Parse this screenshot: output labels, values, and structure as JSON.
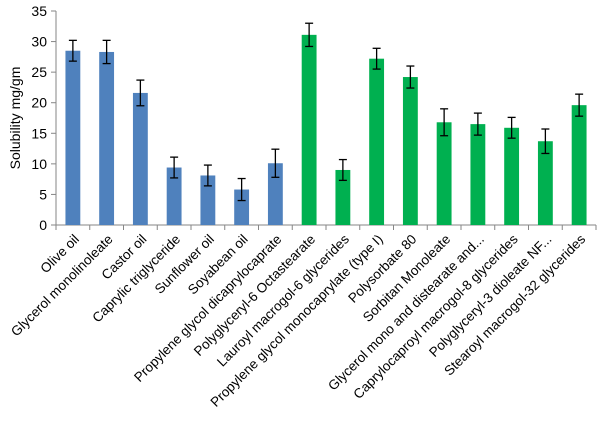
{
  "chart_data": {
    "type": "bar",
    "ylabel": "Solubility mg/gm",
    "xlabel": "",
    "ylim": [
      0,
      35
    ],
    "yticks": [
      0,
      5,
      10,
      15,
      20,
      25,
      30,
      35
    ],
    "grid": false,
    "legend": "none",
    "categories": [
      "Olive oil",
      "Glycerol monolinoleate",
      "Castor oil",
      "Caprylic triglyceride",
      "Sunflower oil",
      "Soyabean oil",
      "Propylene glycol dicaprylocaprate",
      "Polyglyceryl-6 Octastearate",
      "Lauroyl macrogol-6 glycerides",
      "Propylene glycol monocaprylate (type I)",
      "Polysorbate 80",
      "Sorbitan Monoleate",
      "Glycerol mono and distearate and...",
      "Caprylocaproyl macrogol-8 glycerides",
      "Polyglyceryl-3 dioleate NF...",
      "Stearoyl macrogol-32 glycerides"
    ],
    "values": [
      28.5,
      28.3,
      21.6,
      9.4,
      8.1,
      5.8,
      10.1,
      31.1,
      9.0,
      27.2,
      24.2,
      16.8,
      16.5,
      15.9,
      13.7,
      19.6
    ],
    "errors": [
      1.7,
      1.9,
      2.1,
      1.7,
      1.7,
      1.8,
      2.3,
      1.9,
      1.7,
      1.7,
      1.8,
      2.2,
      1.8,
      1.7,
      2.0,
      1.8
    ],
    "colors": [
      "#4f81bd",
      "#4f81bd",
      "#4f81bd",
      "#4f81bd",
      "#4f81bd",
      "#4f81bd",
      "#4f81bd",
      "#00b050",
      "#00b050",
      "#00b050",
      "#00b050",
      "#00b050",
      "#00b050",
      "#00b050",
      "#00b050",
      "#00b050"
    ]
  }
}
